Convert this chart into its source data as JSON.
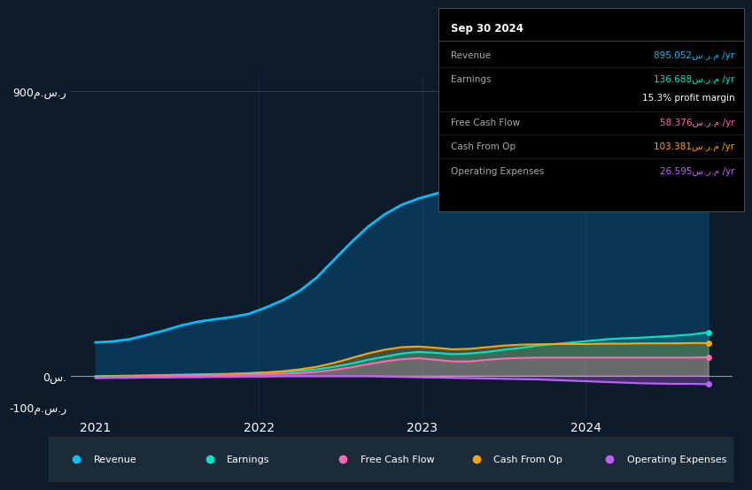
{
  "bg_color": "#0d1b2a",
  "info_date": "Sep 30 2024",
  "info_rows": [
    {
      "label": "Revenue",
      "value": "895.052س.ر.م /yr",
      "color": "#00bfff",
      "has_sep": true
    },
    {
      "label": "Earnings",
      "value": "136.688س.ر.م /yr",
      "color": "#00e5c8",
      "has_sep": false
    },
    {
      "label": "",
      "value": "15.3% profit margin",
      "color": "#ffffff",
      "has_sep": true
    },
    {
      "label": "Free Cash Flow",
      "value": "58.376س.ر.م /yr",
      "color": "#ff69b4",
      "has_sep": true
    },
    {
      "label": "Cash From Op",
      "value": "103.381س.ر.م /yr",
      "color": "#ffa500",
      "has_sep": true
    },
    {
      "label": "Operating Expenses",
      "value": "26.595س.ر.م /yr",
      "color": "#bf5fff",
      "has_sep": false
    }
  ],
  "legend": [
    {
      "label": "Revenue",
      "color": "#00bfff"
    },
    {
      "label": "Earnings",
      "color": "#00e5c8"
    },
    {
      "label": "Free Cash Flow",
      "color": "#ff69b4"
    },
    {
      "label": "Cash From Op",
      "color": "#ffa500"
    },
    {
      "label": "Operating Expenses",
      "color": "#bf5fff"
    }
  ],
  "xlim": [
    2020.85,
    2024.9
  ],
  "ylim": [
    -130,
    950
  ],
  "ytick_vals": [
    -100,
    0,
    900
  ],
  "ytick_labels": [
    "-100م.س.ر",
    "0س.",
    "900م.س.ر"
  ],
  "xtick_vals": [
    2021,
    2022,
    2023,
    2024
  ],
  "xtick_labels": [
    "2021",
    "2022",
    "2023",
    "2024"
  ],
  "revenue": [
    105,
    108,
    115,
    128,
    142,
    158,
    170,
    178,
    185,
    195,
    215,
    238,
    268,
    310,
    365,
    420,
    470,
    510,
    540,
    560,
    575,
    590,
    610,
    635,
    655,
    675,
    695,
    715,
    735,
    758,
    780,
    800,
    820,
    840,
    860,
    878,
    895
  ],
  "earnings": [
    -2,
    -1,
    0,
    1,
    2,
    3,
    4,
    5,
    6,
    8,
    10,
    12,
    15,
    20,
    28,
    38,
    50,
    60,
    70,
    75,
    72,
    68,
    70,
    75,
    82,
    88,
    95,
    100,
    105,
    110,
    115,
    118,
    120,
    123,
    126,
    130,
    137
  ],
  "free_cash_flow": [
    -5,
    -4,
    -3,
    -2,
    -2,
    -1,
    0,
    1,
    2,
    3,
    4,
    6,
    8,
    12,
    18,
    26,
    36,
    45,
    52,
    55,
    50,
    45,
    45,
    50,
    54,
    56,
    57,
    57,
    57,
    57,
    57,
    57,
    57,
    57,
    57,
    57,
    58
  ],
  "cash_from_op": [
    -3,
    -2,
    -2,
    -1,
    0,
    1,
    2,
    3,
    5,
    7,
    10,
    14,
    20,
    28,
    40,
    55,
    70,
    82,
    90,
    92,
    88,
    83,
    85,
    90,
    95,
    98,
    99,
    100,
    100,
    100,
    101,
    101,
    102,
    102,
    102,
    103,
    103
  ],
  "operating_expenses": [
    -8,
    -7,
    -7,
    -6,
    -6,
    -5,
    -5,
    -4,
    -4,
    -3,
    -3,
    -2,
    -2,
    -2,
    -2,
    -2,
    -2,
    -3,
    -4,
    -5,
    -6,
    -7,
    -8,
    -9,
    -10,
    -11,
    -12,
    -14,
    -16,
    -18,
    -20,
    -22,
    -24,
    -25,
    -26,
    -26,
    -27
  ]
}
